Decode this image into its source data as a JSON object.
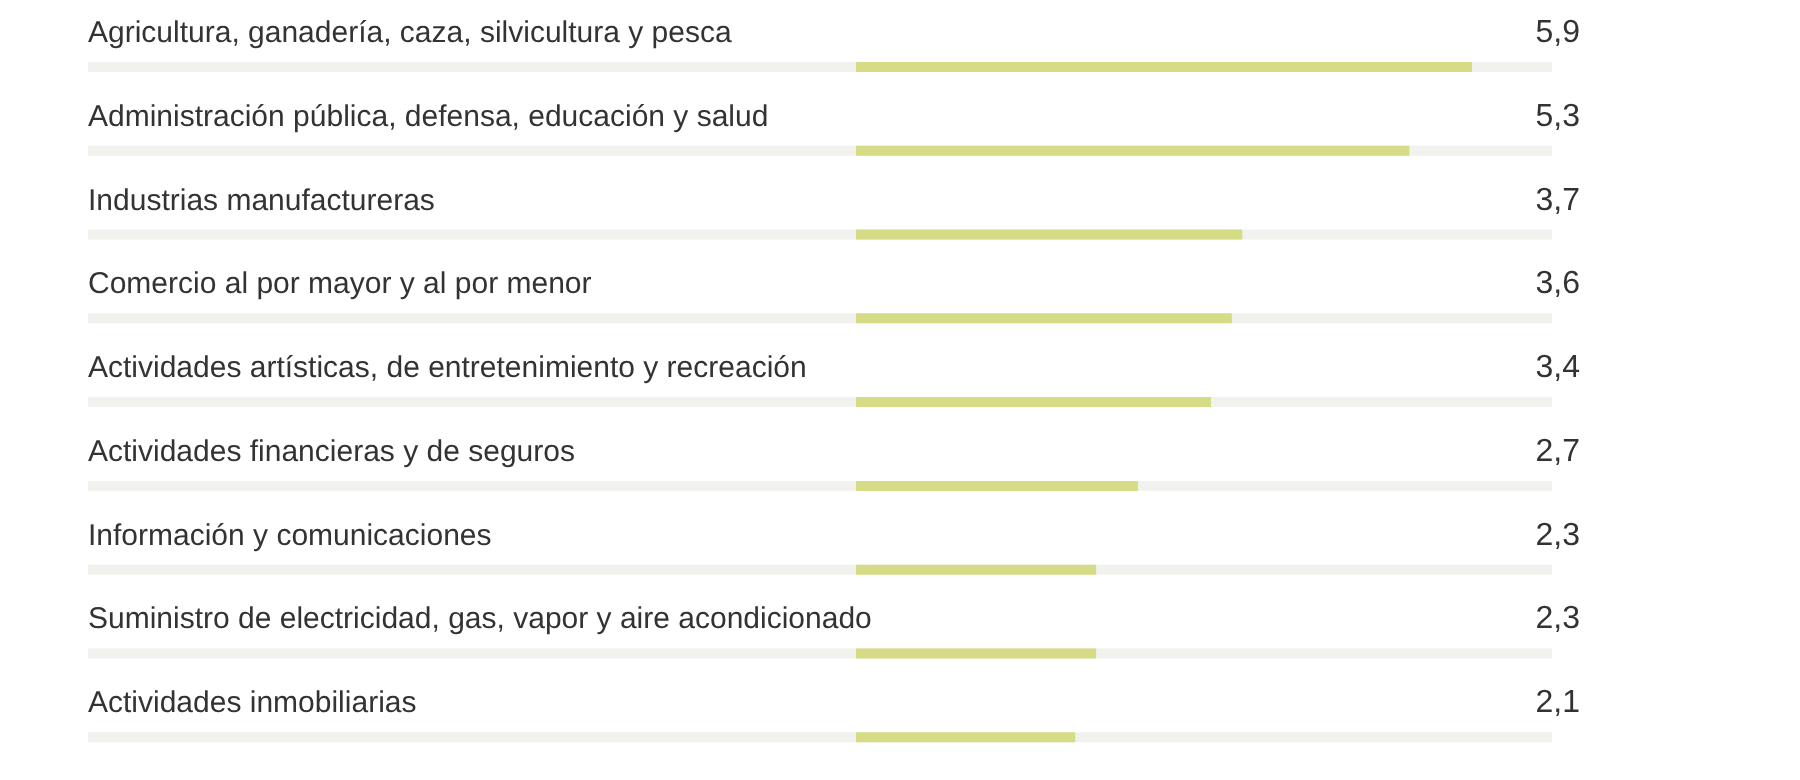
{
  "chart_data": {
    "type": "bar",
    "orientation": "horizontal",
    "categories": [
      "Agricultura, ganadería, caza, silvicultura y pesca",
      "Administración pública, defensa, educación y salud",
      "Industrias manufactureras",
      "Comercio al por mayor y al por menor",
      "Actividades artísticas, de entretenimiento y recreación",
      "Actividades financieras y de seguros",
      "Información y comunicaciones",
      "Suministro de electricidad, gas, vapor y aire acondicionado",
      "Actividades inmobiliarias"
    ],
    "values": [
      5.9,
      5.3,
      3.7,
      3.6,
      3.4,
      2.7,
      2.3,
      2.3,
      2.1
    ],
    "value_labels": [
      "5,9",
      "5,3",
      "3,7",
      "3,6",
      "3,4",
      "2,7",
      "2,3",
      "2,3",
      "2,1"
    ],
    "color": "#d5dc85",
    "grid": false,
    "legend": false
  }
}
